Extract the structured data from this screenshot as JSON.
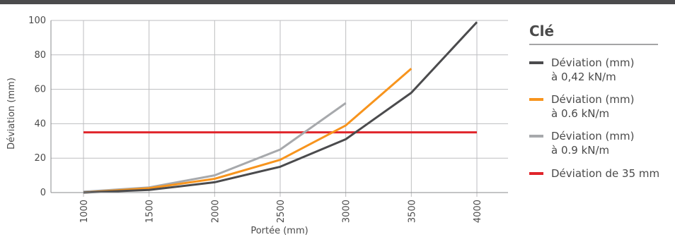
{
  "chart_data": {
    "type": "line",
    "x": [
      1000,
      1500,
      2000,
      2500,
      3000,
      3500,
      4000
    ],
    "xlabel": "Portée (mm)",
    "ylabel": "Déviation (mm)",
    "ylim": [
      0,
      100
    ],
    "yticks": [
      0,
      20,
      40,
      60,
      80,
      100
    ],
    "xtick_labels": [
      "1000",
      "1500",
      "2000",
      "2500",
      "3000",
      "3500",
      "4000"
    ],
    "grid": true,
    "legend_position": "right",
    "legend_title": "Clé",
    "series": [
      {
        "name": "Déviation (mm) à 0,42 kN/m",
        "name_lines": [
          "Déviation (mm)",
          "à 0,42 kN/m"
        ],
        "color": "#4b4b4d",
        "values": [
          0,
          1.5,
          6,
          15,
          31,
          58,
          99
        ]
      },
      {
        "name": "Déviation (mm) à 0.6 kN/m",
        "name_lines": [
          "Déviation (mm)",
          "à 0.6 kN/m"
        ],
        "color": "#f7941d",
        "values": [
          0,
          2.5,
          8,
          19,
          39,
          72,
          null
        ]
      },
      {
        "name": "Déviation (mm) à 0.9 kN/m",
        "name_lines": [
          "Déviation (mm)",
          "à 0.9 kN/m"
        ],
        "color": "#a7a9ac",
        "values": [
          0.5,
          3,
          10,
          25,
          52,
          null,
          null
        ]
      },
      {
        "name": "Déviation de 35 mm",
        "name_lines": [
          "Déviation de 35 mm"
        ],
        "color": "#e0252b",
        "values": [
          35,
          35,
          35,
          35,
          35,
          35,
          35
        ]
      }
    ]
  }
}
